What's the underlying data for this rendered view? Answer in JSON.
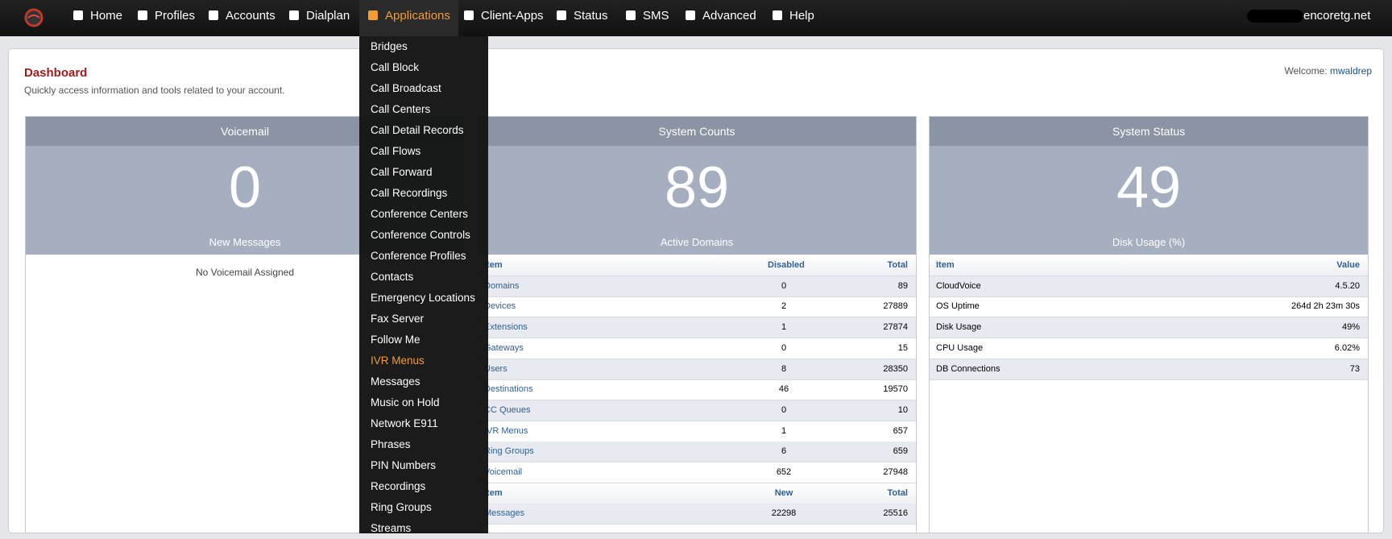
{
  "nav": {
    "items": [
      "Home",
      "Profiles",
      "Accounts",
      "Dialplan",
      "Applications",
      "Client-Apps",
      "Status",
      "SMS",
      "Advanced",
      "Help"
    ],
    "active_index": 4,
    "user": "encoretg.net"
  },
  "dropdown": {
    "items": [
      "Bridges",
      "Call Block",
      "Call Broadcast",
      "Call Centers",
      "Call Detail Records",
      "Call Flows",
      "Call Forward",
      "Call Recordings",
      "Conference Centers",
      "Conference Controls",
      "Conference Profiles",
      "Contacts",
      "Emergency Locations",
      "Fax Server",
      "Follow Me",
      "IVR Menus",
      "Messages",
      "Music on Hold",
      "Network E911",
      "Phrases",
      "PIN Numbers",
      "Recordings",
      "Ring Groups",
      "Streams"
    ],
    "highlighted_index": 15
  },
  "dashboard": {
    "title": "Dashboard",
    "subtitle": "Quickly access information and tools related to your account.",
    "welcome_label": "Welcome:",
    "username": "mwaldrep"
  },
  "panels": [
    {
      "title": "Voicemail",
      "big": 0,
      "caption": "New Messages",
      "message": "No Voicemail Assigned"
    },
    {
      "title": "System Counts",
      "big": 89,
      "caption": "Active Domains",
      "header": [
        "Item",
        "Disabled",
        "Total"
      ],
      "rows": [
        [
          "Domains",
          0,
          89
        ],
        [
          "Devices",
          2,
          27889
        ],
        [
          "Extensions",
          1,
          27874
        ],
        [
          "Gateways",
          0,
          15
        ],
        [
          "Users",
          8,
          28350
        ],
        [
          "Destinations",
          46,
          19570
        ],
        [
          "CC Queues",
          0,
          10
        ],
        [
          "IVR Menus",
          1,
          657
        ],
        [
          "Ring Groups",
          6,
          659
        ],
        [
          "Voicemail",
          652,
          27948
        ]
      ],
      "header2": [
        "Item",
        "New",
        "Total"
      ],
      "rows2": [
        [
          "Messages",
          22298,
          25516
        ]
      ]
    },
    {
      "title": "System Status",
      "big": 49,
      "caption": "Disk Usage (%)",
      "header": [
        "Item",
        "Value"
      ],
      "rows": [
        [
          "CloudVoice",
          "4.5.20"
        ],
        [
          "OS Uptime",
          "264d 2h 23m 30s"
        ],
        [
          "Disk Usage",
          "49%"
        ],
        [
          "CPU Usage",
          "6.02%"
        ],
        [
          "DB Connections",
          73
        ]
      ]
    }
  ]
}
